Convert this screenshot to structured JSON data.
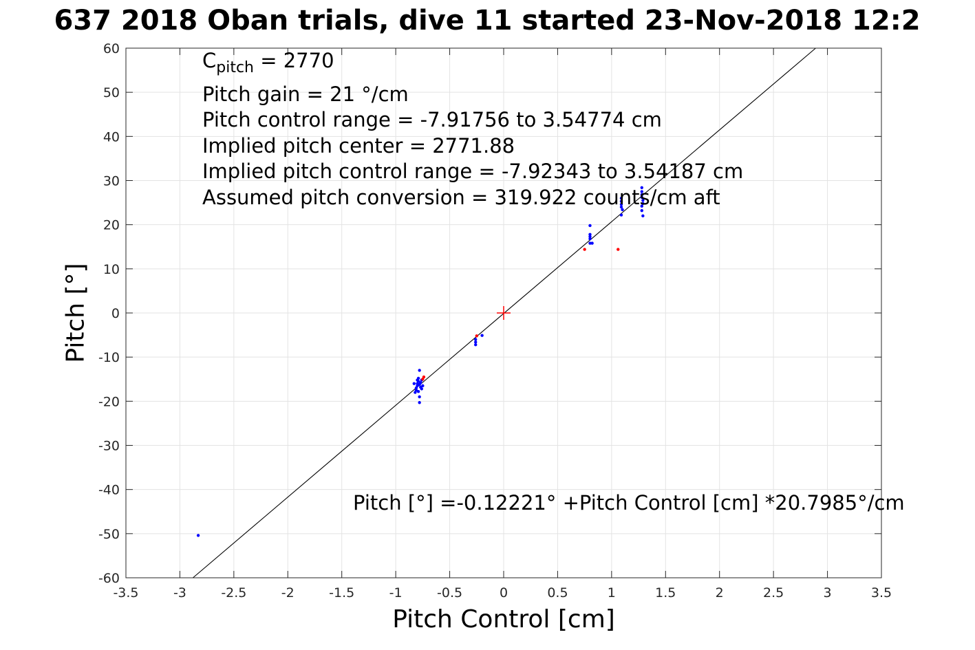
{
  "chart_data": {
    "type": "scatter",
    "title": "637 2018 Oban trials, dive 11 started 23-Nov-2018 12:2",
    "xlabel": "Pitch Control [cm]",
    "ylabel": "Pitch [°]",
    "xlim": [
      -3.5,
      3.5
    ],
    "ylim": [
      -60,
      60
    ],
    "xticks": [
      -3.5,
      -3,
      -2.5,
      -2,
      -1.5,
      -1,
      -0.5,
      0,
      0.5,
      1,
      1.5,
      2,
      2.5,
      3,
      3.5
    ],
    "yticks": [
      -60,
      -50,
      -40,
      -30,
      -20,
      -10,
      0,
      10,
      20,
      30,
      40,
      50,
      60
    ],
    "xtick_labels": [
      "-3.5",
      "-3",
      "-2.5",
      "-2",
      "-1.5",
      "-1",
      "-0.5",
      "0",
      "0.5",
      "1",
      "1.5",
      "2",
      "2.5",
      "3",
      "3.5"
    ],
    "ytick_labels": [
      "-60",
      "-50",
      "-40",
      "-30",
      "-20",
      "-10",
      "0",
      "10",
      "20",
      "30",
      "40",
      "50",
      "60"
    ],
    "grid": true,
    "series": [
      {
        "color": "#0000ff",
        "points": [
          [
            -2.83,
            -50.4
          ],
          [
            -0.78,
            -13.0
          ],
          [
            -0.79,
            -14.8
          ],
          [
            -0.79,
            -15.5
          ],
          [
            -0.8,
            -16.0
          ],
          [
            -0.8,
            -16.5
          ],
          [
            -0.81,
            -17.0
          ],
          [
            -0.81,
            -17.5
          ],
          [
            -0.82,
            -18.0
          ],
          [
            -0.78,
            -16.2
          ],
          [
            -0.77,
            -15.8
          ],
          [
            -0.77,
            -16.8
          ],
          [
            -0.79,
            -17.8
          ],
          [
            -0.78,
            -19.0
          ],
          [
            -0.78,
            -20.3
          ],
          [
            -0.76,
            -15.2
          ],
          [
            -0.75,
            -16.5
          ],
          [
            -0.83,
            -16.0
          ],
          [
            -0.8,
            -15.2
          ],
          [
            -0.76,
            -17.2
          ],
          [
            -0.26,
            -6.0
          ],
          [
            -0.26,
            -6.6
          ],
          [
            -0.26,
            -7.2
          ],
          [
            -0.2,
            -5.1
          ],
          [
            0.8,
            19.8
          ],
          [
            0.8,
            17.8
          ],
          [
            0.8,
            17.3
          ],
          [
            0.8,
            16.8
          ],
          [
            0.8,
            15.8
          ],
          [
            0.82,
            15.8
          ],
          [
            1.09,
            26.0
          ],
          [
            1.09,
            25.3
          ],
          [
            1.09,
            24.6
          ],
          [
            1.09,
            24.0
          ],
          [
            1.1,
            23.4
          ],
          [
            1.09,
            22.2
          ],
          [
            1.28,
            28.4
          ],
          [
            1.28,
            27.5
          ],
          [
            1.28,
            26.8
          ],
          [
            1.28,
            26.2
          ],
          [
            1.29,
            25.5
          ],
          [
            1.29,
            24.8
          ],
          [
            1.28,
            24.2
          ],
          [
            1.28,
            23.2
          ],
          [
            1.29,
            22.0
          ]
        ]
      },
      {
        "color": "#ff0000",
        "points": [
          [
            -0.74,
            -14.5
          ],
          [
            -0.75,
            -15.0
          ],
          [
            -0.25,
            -5.2
          ],
          [
            0.75,
            14.4
          ],
          [
            1.06,
            14.4
          ]
        ]
      }
    ],
    "center_marker": {
      "x": 0,
      "y": 0,
      "color": "#ff0000"
    },
    "fit_line": {
      "intercept": -0.12221,
      "slope": 20.7985,
      "color": "#000000"
    },
    "annotations": {
      "cpitch_symbol": "C",
      "cpitch_sub": "pitch",
      "cpitch_value": " = 2770",
      "lines": [
        "Pitch gain = 21 °/cm",
        "Pitch control range = -7.91756 to 3.54774 cm",
        "Implied pitch center = 2771.88",
        "Implied pitch control range = -7.92343 to 3.54187 cm",
        "Assumed pitch conversion = 319.922 counts/cm aft"
      ],
      "fit_label": "Pitch [°] =-0.12221° +Pitch Control [cm] *20.7985°/cm"
    }
  }
}
